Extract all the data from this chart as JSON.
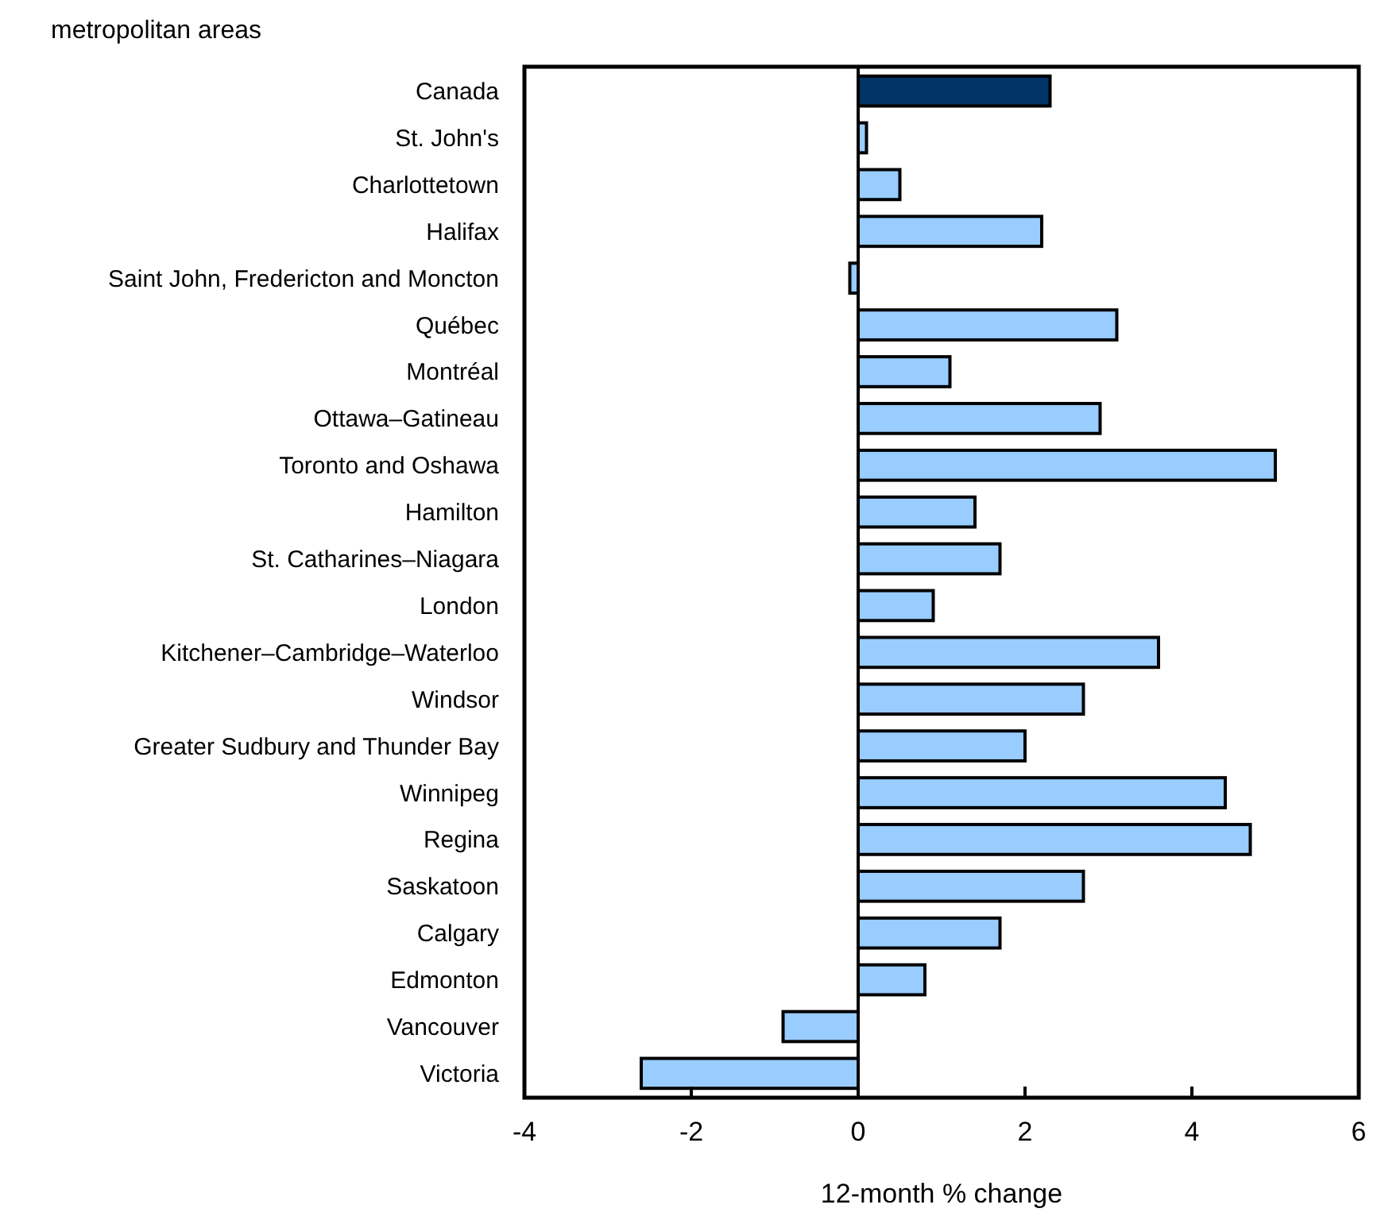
{
  "chart_data": {
    "type": "bar",
    "orientation": "horizontal",
    "title": "metropolitan areas",
    "xlabel": "12-month % change",
    "categories": [
      "Canada",
      "St. John's",
      "Charlottetown",
      "Halifax",
      "Saint John, Fredericton and Moncton",
      "Québec",
      "Montréal",
      "Ottawa–Gatineau",
      "Toronto and Oshawa",
      "Hamilton",
      "St. Catharines–Niagara",
      "London",
      "Kitchener–Cambridge–Waterloo",
      "Windsor",
      "Greater Sudbury and Thunder Bay",
      "Winnipeg",
      "Regina",
      "Saskatoon",
      "Calgary",
      "Edmonton",
      "Vancouver",
      "Victoria"
    ],
    "values": [
      2.3,
      0.1,
      0.5,
      2.2,
      -0.1,
      3.1,
      1.1,
      2.9,
      5.0,
      1.4,
      1.7,
      0.9,
      3.6,
      2.7,
      2.0,
      4.4,
      4.7,
      2.7,
      1.7,
      0.8,
      -0.9,
      -2.6
    ],
    "colors": [
      "#003366",
      "#99ccff",
      "#99ccff",
      "#99ccff",
      "#99ccff",
      "#99ccff",
      "#99ccff",
      "#99ccff",
      "#99ccff",
      "#99ccff",
      "#99ccff",
      "#99ccff",
      "#99ccff",
      "#99ccff",
      "#99ccff",
      "#99ccff",
      "#99ccff",
      "#99ccff",
      "#99ccff",
      "#99ccff",
      "#99ccff",
      "#99ccff"
    ],
    "xlim": [
      -4,
      6
    ],
    "xticks": [
      -4,
      -2,
      0,
      2,
      4,
      6
    ]
  }
}
